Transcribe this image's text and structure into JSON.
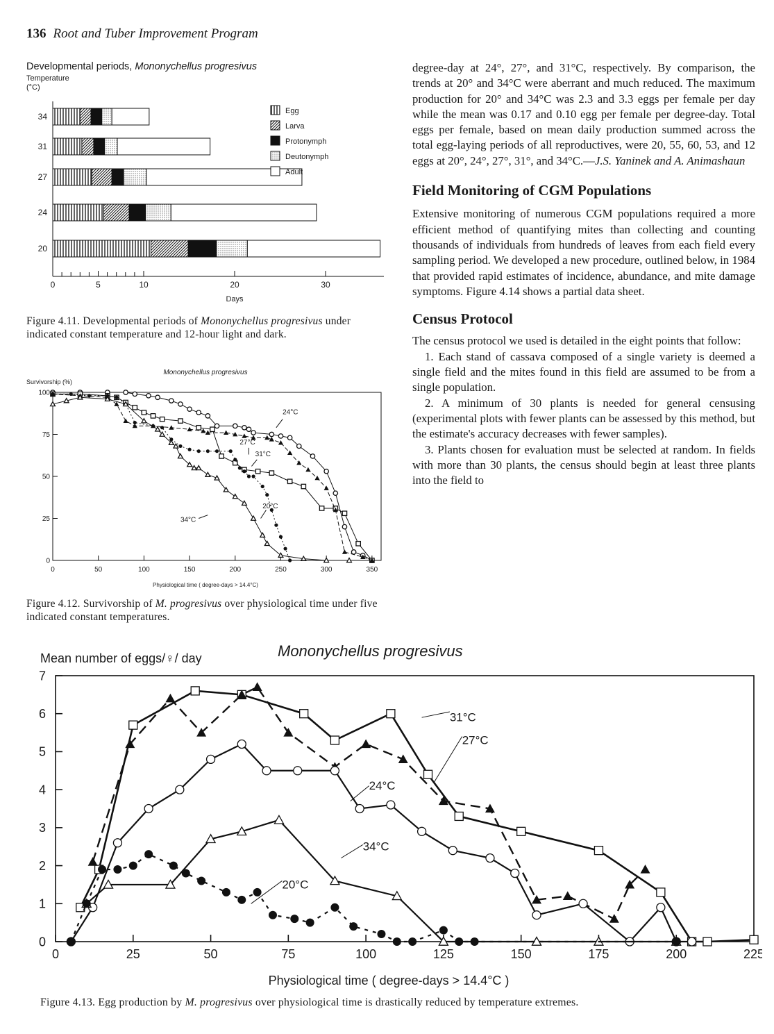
{
  "header": {
    "page_number": "136",
    "running_title": "Root and Tuber Improvement Program"
  },
  "figure_4_11": {
    "title": "Developmental periods, ",
    "title_species": "Mononychellus progresivus",
    "ylabel": "Temperature",
    "yunit": "(°C)",
    "xlabel": "Days",
    "caption_prefix": "Figure 4.11. Developmental periods of ",
    "caption_species": "Mononychellus progresivus",
    "caption_rest": " under indicated constant temperature and 12-hour light and dark."
  },
  "figure_4_12": {
    "title": "Mononychellus progresivus",
    "ylabel": "Survivorship (%)",
    "xlabel": "Physiological time ( degree-days > 14.4°C)",
    "caption_prefix": "Figure 4.12. Survivorship of ",
    "caption_species": "M. progresivus",
    "caption_rest": " over physiological time under five indicated constant temperatures."
  },
  "figure_4_13": {
    "title": "Mononychellus progresivus",
    "ylabel": "Mean number of eggs/♀/ day",
    "xlabel": "Physiological time ( degree-days > 14.4°C )",
    "caption_prefix": "Figure 4.13. Egg production by ",
    "caption_species": "M. progresivus",
    "caption_rest": " over physiological time is drastically reduced by temperature extremes."
  },
  "text": {
    "p1": "degree-day at 24°, 27°, and 31°C, respectively. By comparison, the trends at 20° and 34°C were aberrant and much reduced. The maximum production for 20° and 34°C was 2.3 and 3.3 eggs per female per day while the mean was 0.17 and 0.10 egg per female per degree-day. Total eggs per female, based on mean daily production summed across the total egg-laying periods of all reproductives, were 20, 55, 60, 53, and 12 eggs at 20°, 24°, 27°, 31°, and 34°C.—",
    "p1_author": "J.S. Yaninek and A. Animashaun",
    "heading1": "Field Monitoring of CGM Populations",
    "p2": "Extensive monitoring of numerous CGM populations required a more efficient method of quantifying mites than collecting and counting thousands of individuals from hundreds of leaves from each field every sampling period. We developed a new procedure, outlined below, in 1984 that provided rapid estimates of incidence, abundance, and mite damage symptoms. Figure 4.14 shows a partial data sheet.",
    "heading2": "Census Protocol",
    "p3": "The census protocol we used is detailed in the eight points that follow:",
    "p4": "1. Each stand of cassava composed of a single variety is deemed a single field and the mites found in this field are assumed to be from a single population.",
    "p5": "2. A minimum of 30 plants is needed for general censusing (experimental plots with fewer plants can be assessed by this method, but the estimate's accuracy decreases with fewer samples).",
    "p6": "3. Plants chosen for evaluation must be selected at random. In fields with more than 30 plants, the census should begin at least three plants into the field to"
  },
  "chart_data": [
    {
      "type": "bar",
      "subtype": "stacked-horizontal",
      "title": "Developmental periods, Mononychellus progresivus",
      "ylabel": "Temperature (°C)",
      "xlabel": "Days",
      "xlim": [
        0,
        38
      ],
      "xticks": [
        0,
        5,
        10,
        20,
        30
      ],
      "categories": [
        "34",
        "31",
        "27",
        "24",
        "20"
      ],
      "stages": [
        "Egg",
        "Larva",
        "Protonymph",
        "Deutonymph",
        "Adult"
      ],
      "series": [
        {
          "name": "Egg",
          "values": [
            3.0,
            3.2,
            4.3,
            5.6,
            10.8
          ]
        },
        {
          "name": "Larva",
          "values": [
            1.2,
            1.3,
            2.2,
            2.8,
            4.1
          ]
        },
        {
          "name": "Protonymph",
          "values": [
            1.2,
            1.2,
            1.3,
            1.8,
            3.1
          ]
        },
        {
          "name": "Deutonymph",
          "values": [
            1.1,
            1.4,
            2.5,
            2.8,
            3.4
          ]
        },
        {
          "name": "Adult",
          "values": [
            4.1,
            10.2,
            17.1,
            16.0,
            14.6
          ]
        }
      ]
    },
    {
      "type": "line",
      "title": "Mononychellus progresivus",
      "xlabel": "Physiological time ( degree-days > 14.4°C)",
      "ylabel": "Survivorship (%)",
      "xlim": [
        0,
        360
      ],
      "ylim": [
        0,
        100
      ],
      "xticks": [
        0,
        50,
        100,
        150,
        200,
        250,
        300,
        350
      ],
      "yticks": [
        0,
        25,
        50,
        75,
        100
      ],
      "series": [
        {
          "name": "24°C",
          "x": [
            0,
            30,
            60,
            80,
            90,
            105,
            115,
            130,
            140,
            150,
            160,
            170,
            180,
            200,
            210,
            215,
            220,
            240,
            250,
            260,
            270,
            285,
            300,
            310,
            320,
            330,
            340,
            350
          ],
          "y": [
            100,
            100,
            100,
            100,
            99,
            98,
            97,
            95,
            93,
            90,
            88,
            86,
            80,
            80,
            79,
            78,
            76,
            75,
            74,
            73,
            68,
            62,
            53,
            40,
            20,
            5,
            3,
            0
          ]
        },
        {
          "name": "27°C",
          "x": [
            0,
            30,
            60,
            70,
            80,
            90,
            100,
            110,
            120,
            140,
            160,
            175,
            185,
            200,
            210,
            225,
            240,
            260,
            275,
            295,
            310,
            320,
            335,
            350
          ],
          "y": [
            99,
            99,
            98,
            97,
            94,
            91,
            88,
            86,
            84,
            83,
            79,
            78,
            62,
            58,
            54,
            53,
            52,
            47,
            44,
            31,
            31,
            28,
            10,
            0
          ]
        },
        {
          "name": "31°C",
          "x": [
            0,
            30,
            60,
            70,
            80,
            90,
            110,
            130,
            150,
            165,
            170,
            190,
            200,
            210,
            220,
            235,
            240,
            250,
            260,
            270,
            280,
            290,
            300,
            310,
            320,
            340,
            350
          ],
          "y": [
            99,
            98,
            97,
            93,
            83,
            80,
            80,
            79,
            78,
            77,
            76,
            76,
            75,
            74,
            73,
            73,
            72,
            70,
            64,
            58,
            54,
            49,
            43,
            30,
            5,
            2,
            0
          ]
        },
        {
          "name": "20°C",
          "x": [
            0,
            20,
            40,
            60,
            70,
            80,
            90,
            110,
            120,
            130,
            140,
            150,
            160,
            170,
            180,
            195,
            200,
            205,
            210,
            215,
            220,
            230,
            235,
            240,
            245,
            250,
            255,
            260
          ],
          "y": [
            99,
            99,
            98,
            98,
            97,
            93,
            82,
            80,
            79,
            72,
            68,
            66,
            65,
            65,
            65,
            65,
            60,
            55,
            53,
            50,
            50,
            44,
            39,
            30,
            21,
            14,
            7,
            0
          ]
        },
        {
          "name": "34°C",
          "x": [
            0,
            15,
            30,
            60,
            80,
            100,
            115,
            120,
            130,
            135,
            140,
            150,
            155,
            160,
            170,
            180,
            190,
            200,
            210,
            220,
            230,
            235,
            250,
            275,
            300,
            325
          ],
          "y": [
            93,
            95,
            97,
            96,
            93,
            83,
            78,
            75,
            70,
            68,
            62,
            57,
            55,
            55,
            51,
            49,
            42,
            38,
            34,
            25,
            15,
            10,
            3,
            1,
            0,
            0
          ]
        }
      ]
    },
    {
      "type": "line",
      "title": "Mononychellus progresivus",
      "xlabel": "Physiological time ( degree-days > 14.4°C )",
      "ylabel": "Mean number of eggs/♀/ day",
      "xlim": [
        0,
        225
      ],
      "ylim": [
        0,
        7
      ],
      "xticks": [
        0,
        25,
        50,
        75,
        100,
        125,
        150,
        175,
        200,
        225
      ],
      "yticks": [
        0,
        1,
        2,
        3,
        4,
        5,
        6,
        7
      ],
      "series": [
        {
          "name": "31°C",
          "x": [
            8,
            14,
            25,
            45,
            60,
            80,
            90,
            108,
            120,
            130,
            150,
            175,
            195,
            205,
            210,
            225
          ],
          "y": [
            0.9,
            1.9,
            5.7,
            6.6,
            6.5,
            6.0,
            5.3,
            6.0,
            4.4,
            3.3,
            2.9,
            2.4,
            1.3,
            0,
            0,
            0.05
          ]
        },
        {
          "name": "27°C",
          "x": [
            12,
            24,
            37,
            47,
            60,
            65,
            75,
            90,
            100,
            112,
            125,
            140,
            155,
            165,
            180,
            185,
            190
          ],
          "y": [
            2.1,
            5.2,
            6.4,
            5.5,
            6.5,
            6.7,
            5.5,
            4.6,
            5.2,
            4.8,
            3.7,
            3.5,
            1.1,
            1.2,
            0.6,
            1.5,
            1.9
          ]
        },
        {
          "name": "24°C",
          "x": [
            5,
            12,
            20,
            30,
            40,
            50,
            60,
            68,
            78,
            90,
            98,
            108,
            118,
            128,
            140,
            148,
            155,
            170,
            185,
            195,
            200,
            205
          ],
          "y": [
            0,
            0.9,
            2.6,
            3.5,
            4.0,
            4.8,
            5.2,
            4.5,
            4.5,
            4.5,
            3.5,
            3.6,
            2.9,
            2.4,
            2.2,
            1.8,
            0.7,
            1.0,
            0,
            0.9,
            0,
            0
          ]
        },
        {
          "name": "34°C",
          "x": [
            10,
            17,
            37,
            50,
            60,
            72,
            90,
            110,
            125,
            155,
            175,
            200
          ],
          "y": [
            1.0,
            1.5,
            1.5,
            2.7,
            2.9,
            3.2,
            1.6,
            1.2,
            0,
            0,
            0,
            0
          ]
        },
        {
          "name": "20°C",
          "x": [
            5,
            10,
            15,
            20,
            25,
            30,
            38,
            42,
            47,
            55,
            60,
            65,
            70,
            77,
            82,
            90,
            96,
            105,
            110,
            115,
            125,
            130,
            135,
            200
          ],
          "y": [
            0,
            1.0,
            1.9,
            1.9,
            2.0,
            2.3,
            2.0,
            1.8,
            1.6,
            1.3,
            1.1,
            1.3,
            0.7,
            0.6,
            0.5,
            0.9,
            0.4,
            0.2,
            0,
            0,
            0.3,
            0,
            0,
            0
          ]
        }
      ]
    }
  ]
}
